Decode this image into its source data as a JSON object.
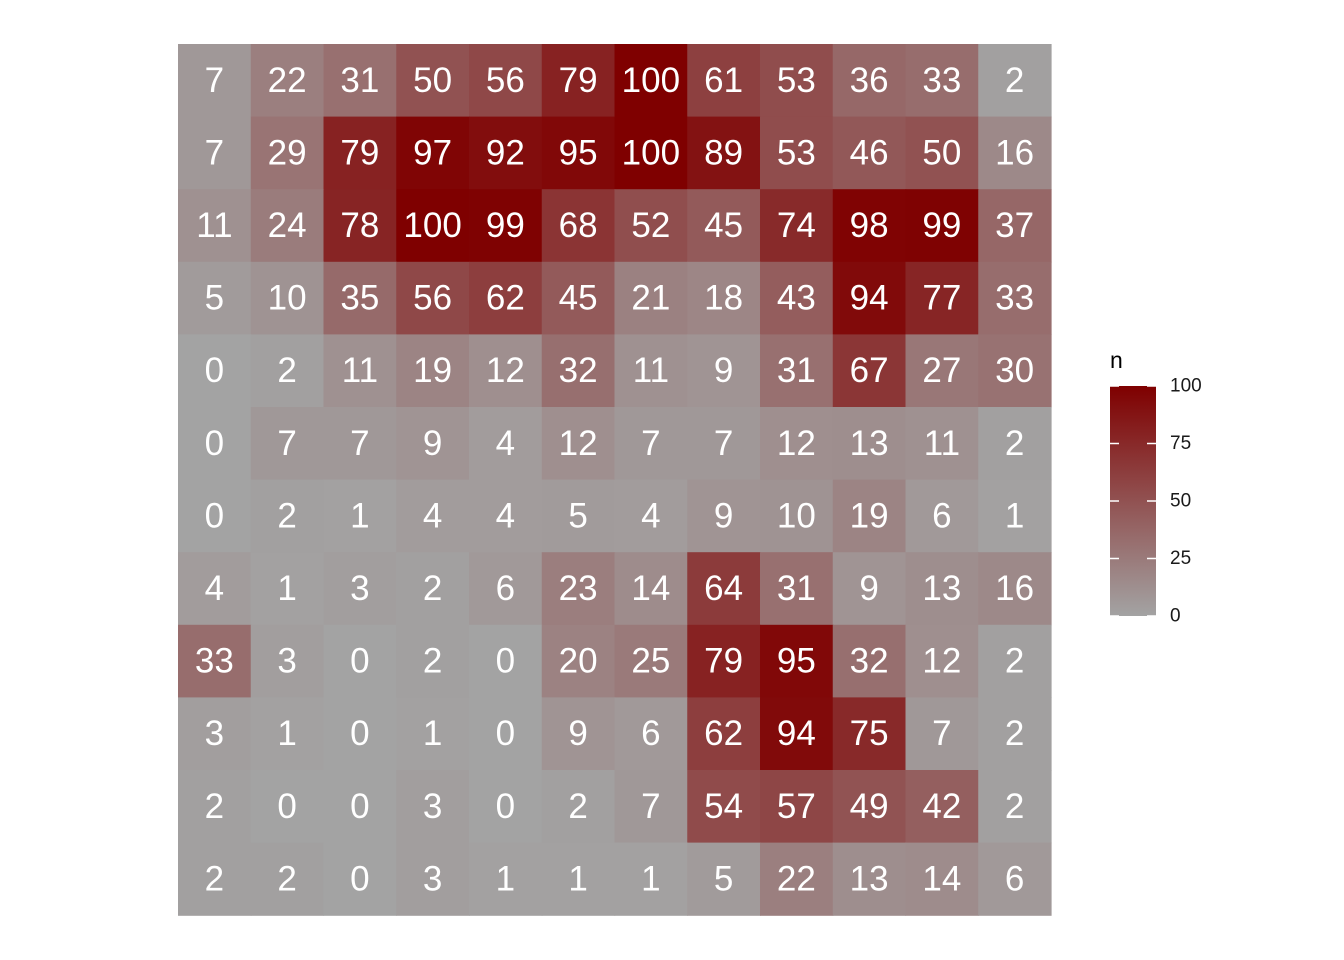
{
  "chart_data": {
    "type": "heatmap",
    "title": "",
    "xlabel": "",
    "ylabel": "",
    "grid": false,
    "rows": 12,
    "cols": 12,
    "values": [
      [
        7,
        22,
        31,
        50,
        56,
        79,
        100,
        61,
        53,
        36,
        33,
        2
      ],
      [
        7,
        29,
        79,
        97,
        92,
        95,
        100,
        89,
        53,
        46,
        50,
        16
      ],
      [
        11,
        24,
        78,
        100,
        99,
        68,
        52,
        45,
        74,
        98,
        99,
        37
      ],
      [
        5,
        10,
        35,
        56,
        62,
        45,
        21,
        18,
        43,
        94,
        77,
        33
      ],
      [
        0,
        2,
        11,
        19,
        12,
        32,
        11,
        9,
        31,
        67,
        27,
        30
      ],
      [
        0,
        7,
        7,
        9,
        4,
        12,
        7,
        7,
        12,
        13,
        11,
        2
      ],
      [
        0,
        2,
        1,
        4,
        4,
        5,
        4,
        9,
        10,
        19,
        6,
        1
      ],
      [
        4,
        1,
        3,
        2,
        6,
        23,
        14,
        64,
        31,
        9,
        13,
        16
      ],
      [
        33,
        3,
        0,
        2,
        0,
        20,
        25,
        79,
        95,
        32,
        12,
        2
      ],
      [
        3,
        1,
        0,
        1,
        0,
        9,
        6,
        62,
        94,
        75,
        7,
        2
      ],
      [
        2,
        0,
        0,
        3,
        0,
        2,
        7,
        54,
        57,
        49,
        42,
        2
      ],
      [
        2,
        2,
        0,
        3,
        1,
        1,
        1,
        5,
        22,
        13,
        14,
        6
      ]
    ],
    "value_range": [
      0,
      100
    ],
    "color_low": "#a3a3a3",
    "color_high": "#7f0000",
    "label_color": "#ffffff",
    "legend": {
      "title": "n",
      "placement": "right",
      "ticks": [
        0,
        25,
        50,
        75,
        100
      ]
    }
  }
}
